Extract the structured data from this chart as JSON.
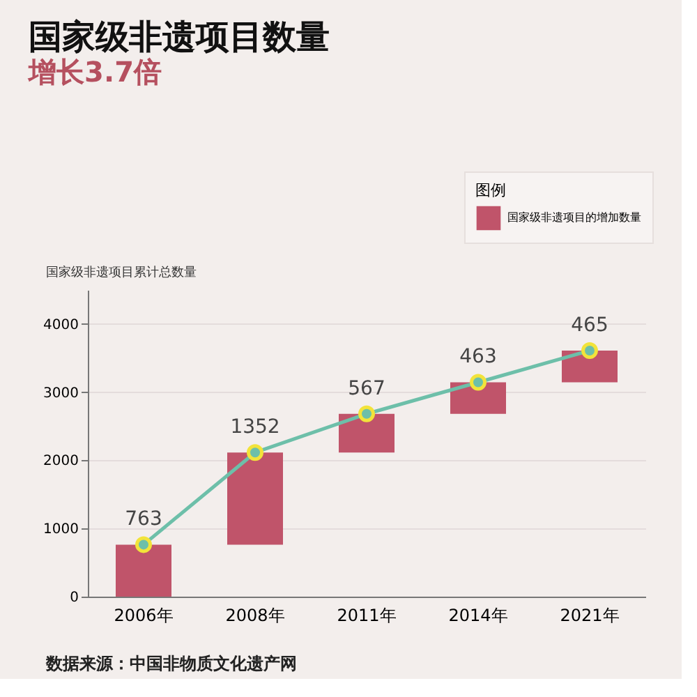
{
  "chart_data": {
    "type": "bar",
    "title": "国家级非遗项目数量",
    "subtitle": "增长3.7倍",
    "ylabel": "国家级非遗项目累计总数量",
    "legend_title": "图例",
    "categories": [
      "2006年",
      "2008年",
      "2011年",
      "2014年",
      "2021年"
    ],
    "series": [
      {
        "name": "国家级非遗项目的增加数量",
        "color": "#c0546a",
        "values": [
          763,
          1352,
          567,
          463,
          465
        ],
        "base": [
          0,
          763,
          2115,
          2682,
          3145
        ],
        "data_labels": true
      },
      {
        "type": "line",
        "color": "#6dbfa9",
        "values": [
          763,
          2115,
          2682,
          3145,
          3610
        ],
        "marker": "circle",
        "line_style": "solid"
      }
    ],
    "ylim": [
      0,
      4500
    ],
    "yticks": [
      0,
      1000,
      2000,
      3000,
      4000
    ],
    "grid": "y",
    "legend": "top right",
    "annotations": [
      "数据来源：中国非物质文化遗产网"
    ]
  }
}
